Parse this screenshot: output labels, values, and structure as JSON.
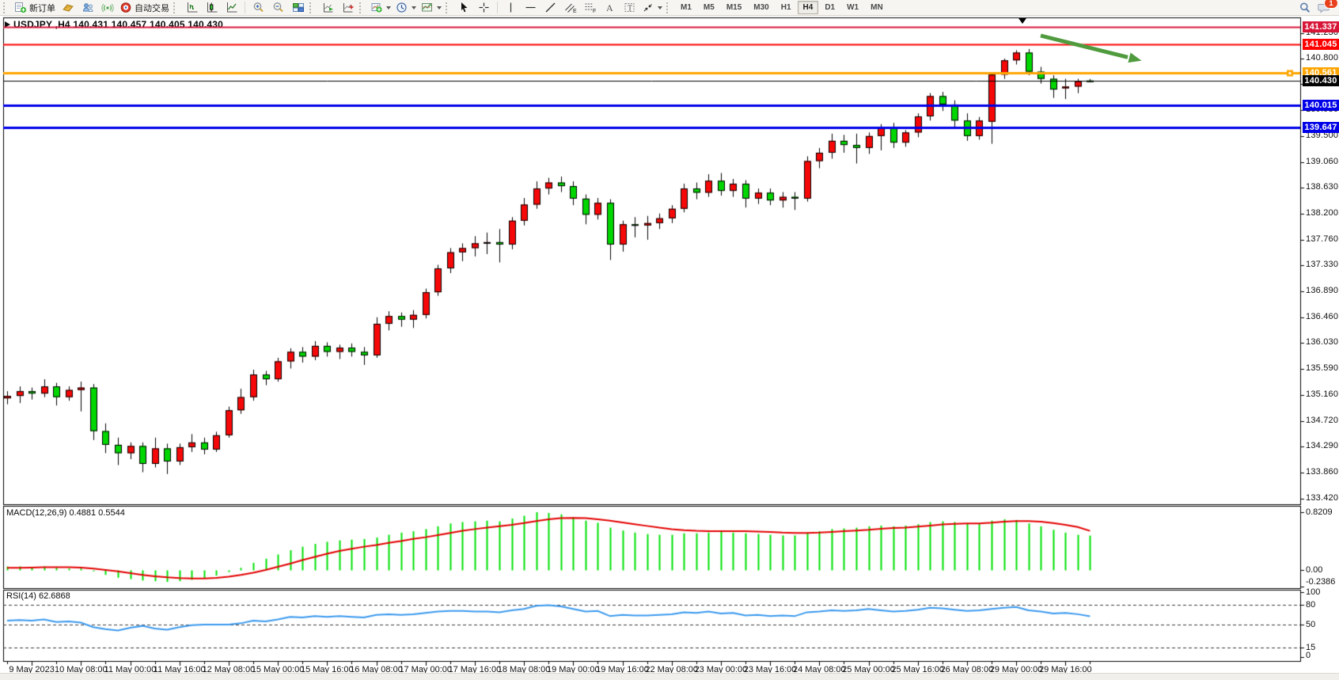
{
  "toolbar": {
    "new_order_label": "新订单",
    "autotrading_label": "自动交易",
    "timeframes": [
      "M1",
      "M5",
      "M15",
      "M30",
      "H1",
      "H4",
      "D1",
      "W1",
      "MN"
    ],
    "active_timeframe": "H4",
    "chat_badge": "1"
  },
  "chart": {
    "title": "USDJPY ,H4 140.431 140.457 140.405 140.430",
    "macd_label": "MACD(12,26,9) 0.4881 0.5544",
    "rsi_label": "RSI(14) 62.6868"
  },
  "chart_data": {
    "type": "candlestick",
    "symbol": "USDJPY",
    "timeframe": "H4",
    "ohlc_current": {
      "open": 140.431,
      "high": 140.457,
      "low": 140.405,
      "close": 140.43
    },
    "colors": {
      "bull_body": "#f70808",
      "bear_body": "#00d600",
      "wick": "#000000",
      "macd_hist": "#00e105",
      "macd_signal": "#e30000",
      "rsi_line": "#3a99ee",
      "panel_border": "#000000",
      "arrow": "#4f9b3e"
    },
    "price_axis_ticks": [
      "141.230",
      "140.800",
      "140.370",
      "139.930",
      "139.500",
      "139.060",
      "138.630",
      "138.200",
      "137.760",
      "137.330",
      "136.890",
      "136.460",
      "136.030",
      "135.590",
      "135.160",
      "134.720",
      "134.290",
      "133.860",
      "133.420"
    ],
    "time_axis_labels": [
      "9 May 2023",
      "10 May 08:00",
      "11 May 00:00",
      "11 May 16:00",
      "12 May 08:00",
      "15 May 00:00",
      "15 May 16:00",
      "16 May 08:00",
      "17 May 00:00",
      "17 May 16:00",
      "18 May 08:00",
      "19 May 00:00",
      "19 May 16:00",
      "22 May 08:00",
      "23 May 00:00",
      "23 May 16:00",
      "24 May 08:00",
      "25 May 00:00",
      "25 May 16:00",
      "26 May 08:00",
      "29 May 00:00",
      "29 May 16:00"
    ],
    "hlines": [
      {
        "price": 141.337,
        "label": "141.337",
        "color": "#d81638",
        "width": 2
      },
      {
        "price": 141.045,
        "label": "141.045",
        "color": "#fe0000",
        "width": 2
      },
      {
        "price": 140.561,
        "label": "140.561",
        "color": "#ffa500",
        "width": 3,
        "handle": true
      },
      {
        "price": 140.43,
        "label": "140.430",
        "color": "#000000",
        "width": 1,
        "current": true
      },
      {
        "price": 140.015,
        "label": "140.015",
        "color": "#0000e8",
        "width": 3
      },
      {
        "price": 139.647,
        "label": "139.647",
        "color": "#0000e8",
        "width": 3
      }
    ],
    "candles": [
      [
        135.1,
        135.22,
        135.0,
        135.14
      ],
      [
        135.14,
        135.3,
        135.02,
        135.22
      ],
      [
        135.22,
        135.28,
        135.08,
        135.18
      ],
      [
        135.18,
        135.42,
        135.12,
        135.3
      ],
      [
        135.3,
        135.36,
        134.98,
        135.12
      ],
      [
        135.12,
        135.3,
        135.06,
        135.24
      ],
      [
        135.24,
        135.38,
        134.88,
        135.28
      ],
      [
        135.28,
        135.34,
        134.4,
        134.55
      ],
      [
        134.55,
        134.68,
        134.18,
        134.32
      ],
      [
        134.32,
        134.44,
        133.98,
        134.18
      ],
      [
        134.18,
        134.36,
        134.08,
        134.3
      ],
      [
        134.3,
        134.36,
        133.86,
        134.0
      ],
      [
        134.0,
        134.44,
        133.94,
        134.26
      ],
      [
        134.26,
        134.34,
        133.83,
        134.04
      ],
      [
        134.04,
        134.34,
        133.98,
        134.28
      ],
      [
        134.28,
        134.5,
        134.2,
        134.36
      ],
      [
        134.36,
        134.44,
        134.16,
        134.24
      ],
      [
        134.24,
        134.54,
        134.2,
        134.48
      ],
      [
        134.48,
        134.96,
        134.44,
        134.9
      ],
      [
        134.9,
        135.26,
        134.84,
        135.12
      ],
      [
        135.12,
        135.58,
        135.06,
        135.5
      ],
      [
        135.5,
        135.56,
        135.32,
        135.42
      ],
      [
        135.42,
        135.78,
        135.38,
        135.72
      ],
      [
        135.72,
        135.94,
        135.6,
        135.88
      ],
      [
        135.88,
        135.96,
        135.7,
        135.8
      ],
      [
        135.8,
        136.06,
        135.74,
        135.98
      ],
      [
        135.98,
        136.04,
        135.8,
        135.88
      ],
      [
        135.88,
        136.0,
        135.76,
        135.95
      ],
      [
        135.95,
        136.02,
        135.8,
        135.88
      ],
      [
        135.88,
        135.96,
        135.66,
        135.82
      ],
      [
        135.82,
        136.46,
        135.78,
        136.35
      ],
      [
        136.35,
        136.56,
        136.24,
        136.48
      ],
      [
        136.48,
        136.54,
        136.3,
        136.42
      ],
      [
        136.42,
        136.58,
        136.28,
        136.5
      ],
      [
        136.5,
        136.94,
        136.44,
        136.88
      ],
      [
        136.88,
        137.34,
        136.82,
        137.28
      ],
      [
        137.28,
        137.62,
        137.2,
        137.55
      ],
      [
        137.55,
        137.7,
        137.4,
        137.62
      ],
      [
        137.62,
        137.82,
        137.48,
        137.7
      ],
      [
        137.7,
        137.88,
        137.52,
        137.72
      ],
      [
        137.72,
        137.94,
        137.38,
        137.68
      ],
      [
        137.68,
        138.14,
        137.6,
        138.08
      ],
      [
        138.08,
        138.46,
        138.0,
        138.35
      ],
      [
        138.35,
        138.74,
        138.28,
        138.62
      ],
      [
        138.62,
        138.8,
        138.52,
        138.72
      ],
      [
        138.72,
        138.82,
        138.56,
        138.66
      ],
      [
        138.66,
        138.74,
        138.34,
        138.45
      ],
      [
        138.45,
        138.52,
        138.02,
        138.18
      ],
      [
        138.18,
        138.46,
        138.1,
        138.38
      ],
      [
        138.38,
        138.44,
        137.42,
        137.68
      ],
      [
        137.68,
        138.08,
        137.56,
        138.02
      ],
      [
        138.02,
        138.14,
        137.8,
        138.0
      ],
      [
        138.0,
        138.16,
        137.76,
        138.04
      ],
      [
        138.04,
        138.2,
        137.94,
        138.12
      ],
      [
        138.12,
        138.34,
        138.04,
        138.28
      ],
      [
        138.28,
        138.7,
        138.22,
        138.62
      ],
      [
        138.62,
        138.72,
        138.44,
        138.55
      ],
      [
        138.55,
        138.86,
        138.48,
        138.75
      ],
      [
        138.75,
        138.88,
        138.5,
        138.58
      ],
      [
        138.58,
        138.78,
        138.48,
        138.7
      ],
      [
        138.7,
        138.76,
        138.3,
        138.45
      ],
      [
        138.45,
        138.62,
        138.36,
        138.55
      ],
      [
        138.55,
        138.62,
        138.34,
        138.42
      ],
      [
        138.42,
        138.56,
        138.3,
        138.48
      ],
      [
        138.48,
        138.56,
        138.26,
        138.45
      ],
      [
        138.45,
        139.16,
        138.4,
        139.08
      ],
      [
        139.08,
        139.3,
        138.96,
        139.22
      ],
      [
        139.22,
        139.54,
        139.12,
        139.42
      ],
      [
        139.42,
        139.52,
        139.22,
        139.35
      ],
      [
        139.35,
        139.54,
        139.04,
        139.3
      ],
      [
        139.3,
        139.56,
        139.2,
        139.5
      ],
      [
        139.5,
        139.7,
        139.26,
        139.64
      ],
      [
        139.64,
        139.72,
        139.3,
        139.39
      ],
      [
        139.39,
        139.6,
        139.32,
        139.56
      ],
      [
        139.56,
        139.88,
        139.48,
        139.83
      ],
      [
        139.83,
        140.22,
        139.76,
        140.17
      ],
      [
        140.17,
        140.24,
        139.92,
        140.03
      ],
      [
        140.03,
        140.1,
        139.64,
        139.76
      ],
      [
        139.76,
        139.88,
        139.42,
        139.5
      ],
      [
        139.5,
        139.82,
        139.44,
        139.76
      ],
      [
        139.74,
        140.57,
        139.37,
        140.53
      ],
      [
        140.53,
        140.8,
        140.46,
        140.77
      ],
      [
        140.77,
        140.94,
        140.7,
        140.9
      ],
      [
        140.9,
        140.96,
        140.52,
        140.58
      ],
      [
        140.58,
        140.66,
        140.38,
        140.46
      ],
      [
        140.46,
        140.52,
        140.14,
        140.28
      ],
      [
        140.3,
        140.46,
        140.12,
        140.33
      ],
      [
        140.33,
        140.46,
        140.22,
        140.42
      ],
      [
        140.431,
        140.457,
        140.405,
        140.43
      ]
    ],
    "macd": {
      "params": "12,26,9",
      "main": 0.4881,
      "signal": 0.5544,
      "axis_labels": [
        "0.8209",
        "0.00",
        "-0.2386"
      ],
      "axis_values": [
        0.8209,
        0.0,
        -0.2386
      ],
      "histogram": [
        0.05,
        0.05,
        0.04,
        0.05,
        0.03,
        0.02,
        0.02,
        -0.02,
        -0.07,
        -0.11,
        -0.13,
        -0.15,
        -0.16,
        -0.17,
        -0.16,
        -0.14,
        -0.12,
        -0.08,
        -0.03,
        0.03,
        0.1,
        0.16,
        0.22,
        0.28,
        0.33,
        0.37,
        0.4,
        0.42,
        0.43,
        0.44,
        0.46,
        0.5,
        0.53,
        0.55,
        0.58,
        0.62,
        0.66,
        0.68,
        0.69,
        0.7,
        0.69,
        0.73,
        0.77,
        0.8209,
        0.81,
        0.79,
        0.75,
        0.7,
        0.67,
        0.6,
        0.56,
        0.53,
        0.51,
        0.5,
        0.5,
        0.52,
        0.52,
        0.53,
        0.54,
        0.53,
        0.52,
        0.51,
        0.5,
        0.49,
        0.49,
        0.52,
        0.55,
        0.58,
        0.59,
        0.6,
        0.62,
        0.63,
        0.62,
        0.63,
        0.65,
        0.68,
        0.69,
        0.68,
        0.66,
        0.65,
        0.7,
        0.72,
        0.71,
        0.66,
        0.62,
        0.57,
        0.53,
        0.5,
        0.4881
      ],
      "signal_line": [
        0.03,
        0.03,
        0.035,
        0.04,
        0.04,
        0.038,
        0.035,
        0.02,
        0.0,
        -0.02,
        -0.045,
        -0.07,
        -0.09,
        -0.105,
        -0.115,
        -0.12,
        -0.12,
        -0.112,
        -0.095,
        -0.07,
        -0.04,
        0.0,
        0.045,
        0.09,
        0.14,
        0.185,
        0.23,
        0.27,
        0.3,
        0.33,
        0.355,
        0.385,
        0.41,
        0.44,
        0.465,
        0.495,
        0.525,
        0.555,
        0.58,
        0.6,
        0.62,
        0.64,
        0.665,
        0.695,
        0.72,
        0.735,
        0.74,
        0.735,
        0.72,
        0.7,
        0.675,
        0.65,
        0.625,
        0.6,
        0.58,
        0.565,
        0.555,
        0.55,
        0.55,
        0.55,
        0.55,
        0.545,
        0.54,
        0.53,
        0.525,
        0.525,
        0.53,
        0.54,
        0.55,
        0.56,
        0.57,
        0.585,
        0.595,
        0.6,
        0.615,
        0.63,
        0.645,
        0.655,
        0.66,
        0.66,
        0.67,
        0.685,
        0.695,
        0.695,
        0.685,
        0.665,
        0.64,
        0.61,
        0.5544
      ]
    },
    "rsi": {
      "period": 14,
      "value": 62.6868,
      "level_labels": [
        "100",
        "80",
        "50",
        "15",
        "0"
      ],
      "level_values": [
        100,
        80,
        50,
        15,
        0
      ],
      "dashed_levels": [
        80,
        50,
        15
      ],
      "values": [
        56,
        57,
        56,
        58,
        54,
        55,
        53,
        46,
        43,
        41,
        45,
        48,
        44,
        42,
        46,
        49,
        50,
        50,
        50,
        52,
        56,
        55,
        58,
        62,
        61,
        63,
        62,
        63,
        62,
        61,
        65,
        66,
        65,
        66,
        68,
        70,
        71,
        71,
        70,
        70,
        69,
        72,
        74,
        79,
        80,
        78,
        74,
        70,
        71,
        63,
        65,
        64,
        64,
        65,
        66,
        69,
        68,
        70,
        67,
        68,
        64,
        65,
        63,
        64,
        63,
        69,
        70,
        72,
        71,
        72,
        74,
        72,
        70,
        71,
        73,
        76,
        75,
        73,
        71,
        72,
        74,
        76,
        77,
        72,
        70,
        67,
        68,
        66,
        62.7
      ],
      "axis_range": [
        0,
        100
      ]
    },
    "annotation_arrow": {
      "from_bar": 84,
      "from_price": 141.18,
      "to_bar": 92.2,
      "to_price": 140.76
    }
  }
}
